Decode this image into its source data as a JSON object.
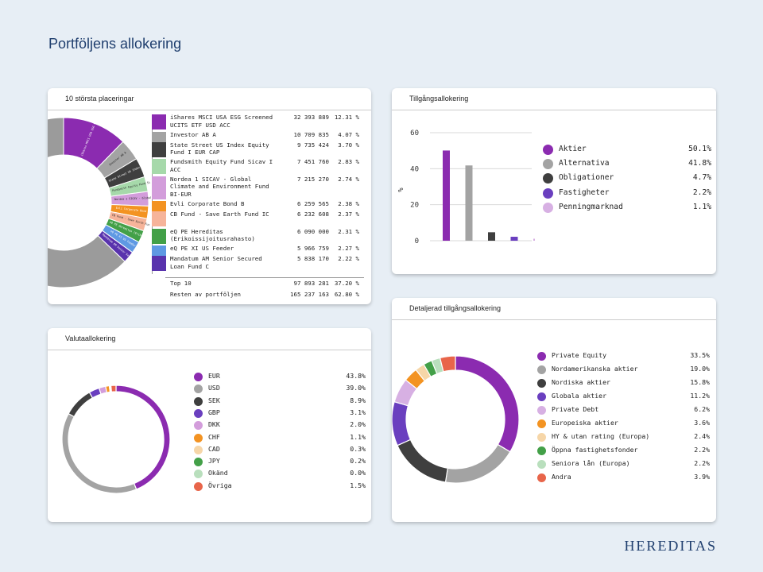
{
  "page": {
    "title": "Portföljens allokering",
    "logo": "HEREDITAS"
  },
  "cards": {
    "top10": "10 största placeringar",
    "asset": "Tillgångsallokering",
    "currency": "Valutaallokering",
    "detailed": "Detaljerad tillgångsallokering"
  },
  "chart_data": [
    {
      "type": "pie",
      "title": "10 största placeringar",
      "variant": "donut-partial",
      "holdings": [
        {
          "name": "iShares MSCI USA ESG Screened UCITS ETF USD ACC",
          "short": "iShares MSCI USA ESG Screened UCITS ETF USD ACC",
          "amount": "32 393 889",
          "pct": 12.31,
          "pct_label": "12.31 %",
          "color": "#8b2bb0"
        },
        {
          "name": "Investor AB A",
          "short": "Investor AB A",
          "amount": "10 709 835",
          "pct": 4.07,
          "pct_label": "4.07 %",
          "color": "#a3a3a3"
        },
        {
          "name": "State Street US Index Equity Fund I EUR CAP",
          "short": "State Street US Index Equity Fund I EUR CAP",
          "amount": "9 735 424",
          "pct": 3.7,
          "pct_label": "3.70 %",
          "color": "#3f3f3f"
        },
        {
          "name": "Fundsmith Equity Fund Sicav I ACC",
          "short": "Fundsmith Equity Fund Sicav I ACC",
          "amount": "7 451 760",
          "pct": 2.83,
          "pct_label": "2.83 %",
          "color": "#a6d9aa"
        },
        {
          "name": "Nordea 1 SICAV - Global Climate and Environment Fund BI-EUR",
          "short": "Nordea 1 SICAV - Global Climate and Environment Fu",
          "amount": "7 215 270",
          "pct": 2.74,
          "pct_label": "2.74 %",
          "color": "#d39ddb"
        },
        {
          "name": "Evli Corporate Bond B",
          "short": "Evli Corporate Bond B",
          "amount": "6 259 565",
          "pct": 2.38,
          "pct_label": "2.38 %",
          "color": "#f39322"
        },
        {
          "name": "CB Fund - Save Earth Fund IC",
          "short": "CB Fund - Save Earth Fund IC",
          "amount": "6 232 608",
          "pct": 2.37,
          "pct_label": "2.37 %",
          "color": "#f6b49a"
        },
        {
          "name": "eQ PE Hereditas (Erikoissijoitusrahasto)",
          "short": "eQ PE Hereditas (Erikoissijoitusrahasto)",
          "amount": "6 090 000",
          "pct": 2.31,
          "pct_label": "2.31 %",
          "color": "#43a048"
        },
        {
          "name": "eQ PE XI US Feeder",
          "short": "eQ PE XI US Feeder",
          "amount": "5 966 759",
          "pct": 2.27,
          "pct_label": "2.27 %",
          "color": "#5f99e3"
        },
        {
          "name": "Mandatum AM Senior Secured Loan Fund C",
          "short": "Mandatum AM Senior Secured Loan Fund C",
          "amount": "5 838 170",
          "pct": 2.22,
          "pct_label": "2.22 %",
          "color": "#5933ad"
        }
      ],
      "rest_color": "#9b9b9b",
      "totals": [
        {
          "label": "Top 10",
          "amount": "97 893 281",
          "pct_label": "37.20 %"
        },
        {
          "label": "Resten av portföljen",
          "amount": "165 237 163",
          "pct_label": "62.80 %"
        }
      ]
    },
    {
      "type": "bar",
      "title": "Tillgångsallokering",
      "ylabel": "%",
      "ylim": [
        0,
        60
      ],
      "yticks": [
        "0",
        "20",
        "40",
        "60"
      ],
      "categories": [
        "Aktier",
        "Alternativa",
        "Obligationer",
        "Fastigheter",
        "Penningmarknad"
      ],
      "values": [
        50.1,
        41.8,
        4.7,
        2.2,
        1.1
      ],
      "labels": [
        "50.1%",
        "41.8%",
        "4.7%",
        "2.2%",
        "1.1%"
      ],
      "colors": [
        "#8b2bb0",
        "#a3a3a3",
        "#3f3f3f",
        "#6a3fbf",
        "#d7b0e3"
      ]
    },
    {
      "type": "pie",
      "title": "Valutaallokering",
      "variant": "donut",
      "categories": [
        "EUR",
        "USD",
        "SEK",
        "GBP",
        "DKK",
        "CHF",
        "CAD",
        "JPY",
        "Okänd",
        "Övriga"
      ],
      "values": [
        43.8,
        39.0,
        8.9,
        3.1,
        2.0,
        1.1,
        0.3,
        0.2,
        0.0,
        1.5
      ],
      "labels": [
        "43.8%",
        "39.0%",
        "8.9%",
        "3.1%",
        "2.0%",
        "1.1%",
        "0.3%",
        "0.2%",
        "0.0%",
        "1.5%"
      ],
      "colors": [
        "#8b2bb0",
        "#a3a3a3",
        "#3f3f3f",
        "#6a3fbf",
        "#d39ddb",
        "#f39322",
        "#f6d6a8",
        "#43a048",
        "#b9dfbd",
        "#e8654a"
      ]
    },
    {
      "type": "pie",
      "title": "Detaljerad tillgångsallokering",
      "variant": "donut",
      "categories": [
        "Private Equity",
        "Nordamerikanska aktier",
        "Nordiska aktier",
        "Globala aktier",
        "Private Debt",
        "Europeiska aktier",
        "HY & utan rating (Europa)",
        "Öppna fastighetsfonder",
        "Seniora lån (Europa)",
        "Andra"
      ],
      "values": [
        33.5,
        19.0,
        15.8,
        11.2,
        6.2,
        3.6,
        2.4,
        2.2,
        2.2,
        3.9
      ],
      "labels": [
        "33.5%",
        "19.0%",
        "15.8%",
        "11.2%",
        "6.2%",
        "3.6%",
        "2.4%",
        "2.2%",
        "2.2%",
        "3.9%"
      ],
      "colors": [
        "#8b2bb0",
        "#a3a3a3",
        "#3f3f3f",
        "#6a3fbf",
        "#d7b0e3",
        "#f39322",
        "#f6d6a8",
        "#43a048",
        "#b9dfbd",
        "#e8654a"
      ]
    }
  ]
}
